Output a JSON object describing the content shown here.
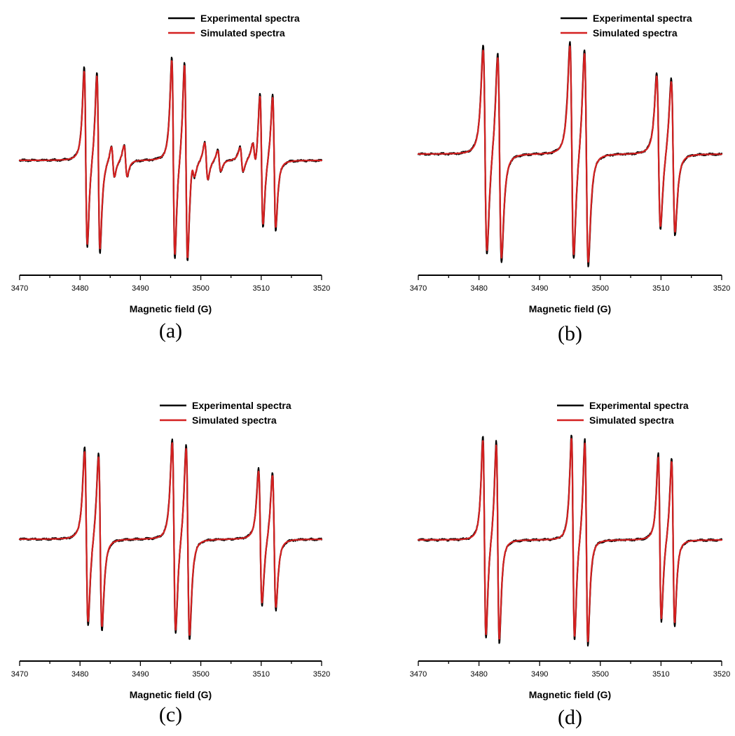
{
  "chart_data": [
    {
      "type": "line",
      "panel": "(a)",
      "xlabel": "Magnetic field (G)",
      "xlim": [
        3470,
        3520
      ],
      "xticks": [
        3470,
        3480,
        3490,
        3500,
        3510,
        3520
      ],
      "grid": false,
      "legend_position": "top-right",
      "series": [
        {
          "name": "Experimental spectra",
          "color": "#000000"
        },
        {
          "name": "Simulated spectra",
          "color": "#d42020"
        }
      ],
      "lines": [
        {
          "center": 3482.0,
          "split": 2.1,
          "amp": 1.0,
          "width": 0.45
        },
        {
          "center": 3496.5,
          "split": 2.1,
          "amp": 1.12,
          "width": 0.45
        },
        {
          "center": 3511.1,
          "split": 2.1,
          "amp": 0.75,
          "width": 0.45
        },
        {
          "center": 3486.5,
          "split": 2.1,
          "amp": 0.18,
          "width": 0.45
        },
        {
          "center": 3499.8,
          "split": 2.1,
          "amp": 0.1,
          "width": 0.45
        },
        {
          "center": 3502.0,
          "split": 2.1,
          "amp": 0.12,
          "width": 0.45
        },
        {
          "center": 3507.8,
          "split": 2.1,
          "amp": 0.14,
          "width": 0.45
        }
      ]
    },
    {
      "type": "line",
      "panel": "(b)",
      "xlabel": "Magnetic field (G)",
      "xlim": [
        3470,
        3520
      ],
      "xticks": [
        3470,
        3480,
        3490,
        3500,
        3510,
        3520
      ],
      "grid": false,
      "legend_position": "top-right",
      "series": [
        {
          "name": "Experimental spectra",
          "color": "#000000"
        },
        {
          "name": "Simulated spectra",
          "color": "#d42020"
        }
      ],
      "lines": [
        {
          "center": 3482.2,
          "split": 2.4,
          "amp": 1.0,
          "width": 0.55
        },
        {
          "center": 3496.5,
          "split": 2.4,
          "amp": 1.04,
          "width": 0.55
        },
        {
          "center": 3510.8,
          "split": 2.4,
          "amp": 0.75,
          "width": 0.55
        }
      ]
    },
    {
      "type": "line",
      "panel": "(c)",
      "xlabel": "Magnetic field (G)",
      "xlim": [
        3470,
        3520
      ],
      "xticks": [
        3470,
        3480,
        3490,
        3500,
        3510,
        3520
      ],
      "grid": false,
      "legend_position": "top-right",
      "series": [
        {
          "name": "Experimental spectra",
          "color": "#000000"
        },
        {
          "name": "Simulated spectra",
          "color": "#d42020"
        }
      ],
      "lines": [
        {
          "center": 3482.2,
          "split": 2.3,
          "amp": 0.98,
          "width": 0.5
        },
        {
          "center": 3496.7,
          "split": 2.3,
          "amp": 1.08,
          "width": 0.5
        },
        {
          "center": 3511.0,
          "split": 2.3,
          "amp": 0.76,
          "width": 0.5
        }
      ]
    },
    {
      "type": "line",
      "panel": "(d)",
      "xlabel": "Magnetic field (G)",
      "xlim": [
        3470,
        3520
      ],
      "xticks": [
        3470,
        3480,
        3490,
        3500,
        3510,
        3520
      ],
      "grid": false,
      "legend_position": "top-right",
      "series": [
        {
          "name": "Experimental spectra",
          "color": "#000000"
        },
        {
          "name": "Simulated spectra",
          "color": "#d42020"
        }
      ],
      "lines": [
        {
          "center": 3482.0,
          "split": 2.2,
          "amp": 1.0,
          "width": 0.45
        },
        {
          "center": 3496.6,
          "split": 2.2,
          "amp": 1.02,
          "width": 0.45
        },
        {
          "center": 3510.9,
          "split": 2.2,
          "amp": 0.83,
          "width": 0.45
        }
      ]
    }
  ]
}
